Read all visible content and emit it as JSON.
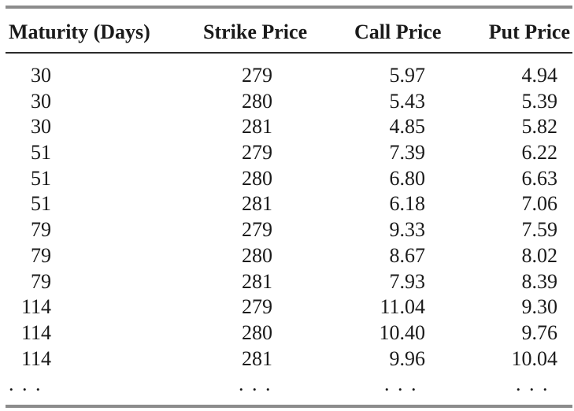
{
  "table": {
    "headers": [
      "Maturity (Days)",
      "Strike Price",
      "Call Price",
      "Put Price"
    ],
    "rows": [
      [
        "30",
        "279",
        "5.97",
        "4.94"
      ],
      [
        "30",
        "280",
        "5.43",
        "5.39"
      ],
      [
        "30",
        "281",
        "4.85",
        "5.82"
      ],
      [
        "51",
        "279",
        "7.39",
        "6.22"
      ],
      [
        "51",
        "280",
        "6.80",
        "6.63"
      ],
      [
        "51",
        "281",
        "6.18",
        "7.06"
      ],
      [
        "79",
        "279",
        "9.33",
        "7.59"
      ],
      [
        "79",
        "280",
        "8.67",
        "8.02"
      ],
      [
        "79",
        "281",
        "7.93",
        "8.39"
      ],
      [
        "114",
        "279",
        "11.04",
        "9.30"
      ],
      [
        "114",
        "280",
        "10.40",
        "9.76"
      ],
      [
        "114",
        "281",
        "9.96",
        "10.04"
      ]
    ],
    "ellipsis": ". . ."
  }
}
